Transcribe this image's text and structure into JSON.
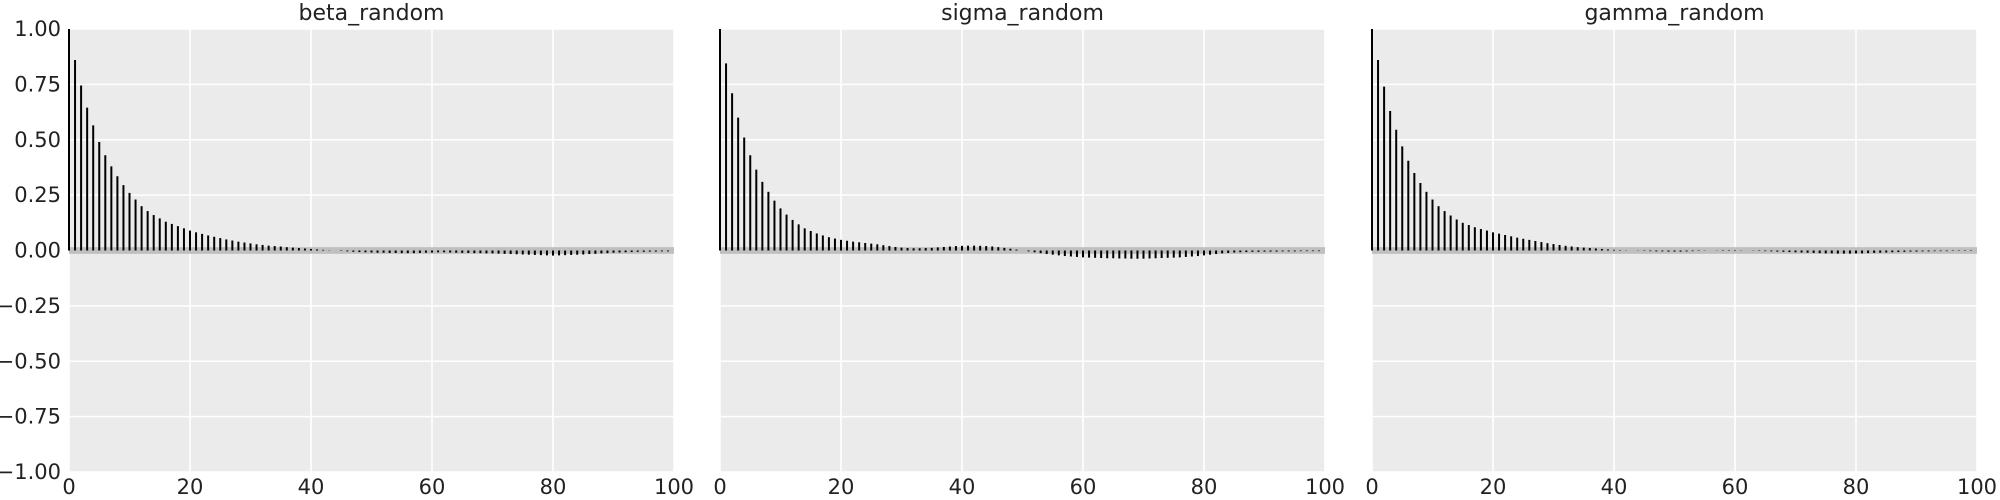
{
  "chart_data": [
    {
      "type": "bar",
      "title": "beta_random",
      "xlabel": "",
      "ylabel": "",
      "xlim": [
        0,
        100
      ],
      "ylim": [
        -1.0,
        1.0
      ],
      "grid": true,
      "x_ticks": [
        "0",
        "20",
        "40",
        "60",
        "80",
        "100"
      ],
      "y_ticks": [
        "1.00",
        "0.75",
        "0.50",
        "0.25",
        "0.00",
        "−0.25",
        "−0.50",
        "−0.75",
        "−1.00"
      ],
      "confidence_band": [
        -0.015,
        0.015
      ],
      "lags": [
        0,
        1,
        2,
        3,
        4,
        5,
        6,
        7,
        8,
        9,
        10,
        11,
        12,
        13,
        14,
        15,
        16,
        17,
        18,
        19,
        20,
        21,
        22,
        23,
        24,
        25,
        26,
        27,
        28,
        29,
        30,
        31,
        32,
        33,
        34,
        35,
        36,
        37,
        38,
        39,
        40,
        41,
        42,
        43,
        44,
        45,
        46,
        47,
        48,
        49,
        50,
        51,
        52,
        53,
        54,
        55,
        56,
        57,
        58,
        59,
        60,
        61,
        62,
        63,
        64,
        65,
        66,
        67,
        68,
        69,
        70,
        71,
        72,
        73,
        74,
        75,
        76,
        77,
        78,
        79,
        80,
        81,
        82,
        83,
        84,
        85,
        86,
        87,
        88,
        89,
        90,
        91,
        92,
        93,
        94,
        95,
        96,
        97,
        98,
        99
      ],
      "values": [
        1.0,
        0.86,
        0.745,
        0.645,
        0.565,
        0.49,
        0.43,
        0.38,
        0.335,
        0.295,
        0.26,
        0.23,
        0.2,
        0.178,
        0.16,
        0.145,
        0.13,
        0.12,
        0.11,
        0.1,
        0.09,
        0.082,
        0.075,
        0.068,
        0.062,
        0.056,
        0.05,
        0.045,
        0.04,
        0.036,
        0.032,
        0.028,
        0.025,
        0.022,
        0.02,
        0.018,
        0.015,
        0.013,
        0.011,
        0.009,
        0.007,
        0.005,
        0.003,
        0.001,
        0.0,
        -0.002,
        -0.004,
        -0.006,
        -0.007,
        -0.008,
        -0.009,
        -0.01,
        -0.01,
        -0.011,
        -0.011,
        -0.012,
        -0.012,
        -0.012,
        -0.011,
        -0.01,
        -0.009,
        -0.008,
        -0.008,
        -0.009,
        -0.01,
        -0.011,
        -0.011,
        -0.012,
        -0.012,
        -0.013,
        -0.013,
        -0.014,
        -0.015,
        -0.016,
        -0.017,
        -0.018,
        -0.019,
        -0.02,
        -0.021,
        -0.022,
        -0.023,
        -0.022,
        -0.021,
        -0.02,
        -0.019,
        -0.018,
        -0.016,
        -0.015,
        -0.013,
        -0.012,
        -0.01,
        -0.009,
        -0.008,
        -0.007,
        -0.006,
        -0.006,
        -0.005,
        -0.005,
        -0.004,
        -0.004
      ]
    },
    {
      "type": "bar",
      "title": "sigma_random",
      "xlabel": "",
      "ylabel": "",
      "xlim": [
        0,
        100
      ],
      "ylim": [
        -1.0,
        1.0
      ],
      "grid": true,
      "x_ticks": [
        "0",
        "20",
        "40",
        "60",
        "80",
        "100"
      ],
      "confidence_band": [
        -0.015,
        0.015
      ],
      "lags": [
        0,
        1,
        2,
        3,
        4,
        5,
        6,
        7,
        8,
        9,
        10,
        11,
        12,
        13,
        14,
        15,
        16,
        17,
        18,
        19,
        20,
        21,
        22,
        23,
        24,
        25,
        26,
        27,
        28,
        29,
        30,
        31,
        32,
        33,
        34,
        35,
        36,
        37,
        38,
        39,
        40,
        41,
        42,
        43,
        44,
        45,
        46,
        47,
        48,
        49,
        50,
        51,
        52,
        53,
        54,
        55,
        56,
        57,
        58,
        59,
        60,
        61,
        62,
        63,
        64,
        65,
        66,
        67,
        68,
        69,
        70,
        71,
        72,
        73,
        74,
        75,
        76,
        77,
        78,
        79,
        80,
        81,
        82,
        83,
        84,
        85,
        86,
        87,
        88,
        89,
        90,
        91,
        92,
        93,
        94,
        95,
        96,
        97,
        98,
        99
      ],
      "values": [
        1.0,
        0.845,
        0.71,
        0.6,
        0.51,
        0.43,
        0.365,
        0.31,
        0.265,
        0.225,
        0.19,
        0.162,
        0.138,
        0.118,
        0.1,
        0.088,
        0.077,
        0.068,
        0.06,
        0.054,
        0.048,
        0.044,
        0.04,
        0.037,
        0.034,
        0.031,
        0.028,
        0.024,
        0.02,
        0.016,
        0.013,
        0.011,
        0.01,
        0.01,
        0.011,
        0.012,
        0.014,
        0.016,
        0.018,
        0.02,
        0.021,
        0.022,
        0.022,
        0.021,
        0.02,
        0.018,
        0.015,
        0.012,
        0.008,
        0.004,
        0.0,
        -0.004,
        -0.008,
        -0.012,
        -0.016,
        -0.019,
        -0.022,
        -0.025,
        -0.027,
        -0.029,
        -0.031,
        -0.032,
        -0.033,
        -0.034,
        -0.035,
        -0.035,
        -0.036,
        -0.036,
        -0.037,
        -0.037,
        -0.037,
        -0.036,
        -0.035,
        -0.034,
        -0.033,
        -0.032,
        -0.031,
        -0.029,
        -0.027,
        -0.025,
        -0.022,
        -0.019,
        -0.016,
        -0.013,
        -0.011,
        -0.009,
        -0.008,
        -0.007,
        -0.006,
        -0.006,
        -0.005,
        -0.005,
        -0.005,
        -0.004,
        -0.004,
        -0.004,
        -0.003,
        -0.003,
        -0.003,
        -0.003
      ]
    },
    {
      "type": "bar",
      "title": "gamma_random",
      "xlabel": "",
      "ylabel": "",
      "xlim": [
        0,
        100
      ],
      "ylim": [
        -1.0,
        1.0
      ],
      "grid": true,
      "x_ticks": [
        "0",
        "20",
        "40",
        "60",
        "80",
        "100"
      ],
      "confidence_band": [
        -0.015,
        0.015
      ],
      "lags": [
        0,
        1,
        2,
        3,
        4,
        5,
        6,
        7,
        8,
        9,
        10,
        11,
        12,
        13,
        14,
        15,
        16,
        17,
        18,
        19,
        20,
        21,
        22,
        23,
        24,
        25,
        26,
        27,
        28,
        29,
        30,
        31,
        32,
        33,
        34,
        35,
        36,
        37,
        38,
        39,
        40,
        41,
        42,
        43,
        44,
        45,
        46,
        47,
        48,
        49,
        50,
        51,
        52,
        53,
        54,
        55,
        56,
        57,
        58,
        59,
        60,
        61,
        62,
        63,
        64,
        65,
        66,
        67,
        68,
        69,
        70,
        71,
        72,
        73,
        74,
        75,
        76,
        77,
        78,
        79,
        80,
        81,
        82,
        83,
        84,
        85,
        86,
        87,
        88,
        89,
        90,
        91,
        92,
        93,
        94,
        95,
        96,
        97,
        98,
        99
      ],
      "values": [
        1.0,
        0.86,
        0.74,
        0.63,
        0.545,
        0.47,
        0.405,
        0.35,
        0.305,
        0.265,
        0.23,
        0.2,
        0.178,
        0.158,
        0.14,
        0.125,
        0.115,
        0.105,
        0.097,
        0.09,
        0.082,
        0.076,
        0.07,
        0.064,
        0.058,
        0.053,
        0.048,
        0.043,
        0.038,
        0.033,
        0.029,
        0.025,
        0.021,
        0.018,
        0.015,
        0.013,
        0.011,
        0.009,
        0.007,
        0.005,
        0.003,
        0.002,
        0.001,
        0.0,
        -0.001,
        -0.002,
        -0.003,
        -0.004,
        -0.004,
        -0.005,
        -0.005,
        -0.005,
        -0.004,
        -0.003,
        -0.002,
        -0.001,
        0.0,
        0.001,
        0.002,
        0.002,
        0.002,
        0.001,
        0.0,
        -0.001,
        -0.002,
        -0.003,
        -0.004,
        -0.005,
        -0.006,
        -0.007,
        -0.008,
        -0.009,
        -0.01,
        -0.011,
        -0.012,
        -0.013,
        -0.013,
        -0.014,
        -0.014,
        -0.014,
        -0.013,
        -0.013,
        -0.012,
        -0.011,
        -0.01,
        -0.009,
        -0.008,
        -0.007,
        -0.006,
        -0.005,
        -0.005,
        -0.004,
        -0.004,
        -0.003,
        -0.003,
        -0.003,
        -0.002,
        -0.002,
        -0.002,
        -0.002
      ]
    }
  ],
  "colors": {
    "plot_background": "#ebebeb",
    "gridline": "#ffffff",
    "bar": "#000000",
    "confidence_band": "#bfbfbf",
    "text": "#222222"
  }
}
